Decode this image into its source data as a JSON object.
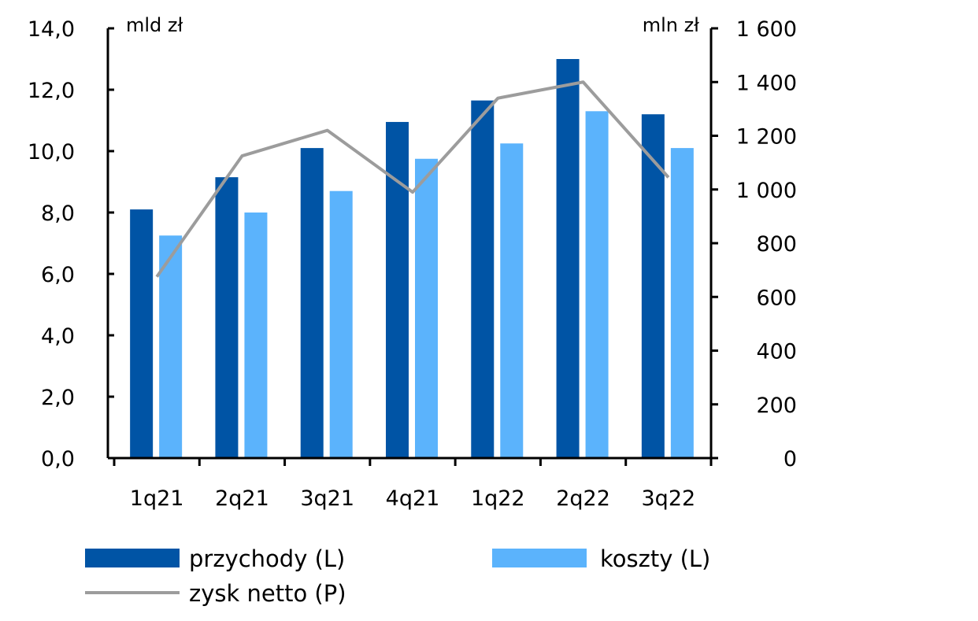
{
  "chart_data": {
    "type": "bar",
    "categories": [
      "1q21",
      "2q21",
      "3q21",
      "4q21",
      "1q22",
      "2q22",
      "3q22"
    ],
    "left_axis": {
      "unit": "mld zł",
      "ylim": [
        0,
        14
      ],
      "ticks": [
        "0,0",
        "2,0",
        "4,0",
        "6,0",
        "8,0",
        "10,0",
        "12,0",
        "14,0"
      ]
    },
    "right_axis": {
      "unit": "mln zł",
      "ylim": [
        0,
        1600
      ],
      "ticks": [
        "0",
        "200",
        "400",
        "600",
        "800",
        "1 000",
        "1 200",
        "1 400",
        "1 600"
      ]
    },
    "series": [
      {
        "name": "przychody (L)",
        "type": "bar",
        "axis": "left",
        "color": "#0054a5",
        "values": [
          8.1,
          9.15,
          10.1,
          10.95,
          11.65,
          13.0,
          11.2
        ]
      },
      {
        "name": "koszty (L)",
        "type": "bar",
        "axis": "left",
        "color": "#5bb3fc",
        "values": [
          7.25,
          8.0,
          8.7,
          9.75,
          10.25,
          11.3,
          10.1
        ]
      },
      {
        "name": "zysk netto (P)",
        "type": "line",
        "axis": "right",
        "color": "#9c9c9c",
        "values": [
          675,
          1125,
          1220,
          990,
          1340,
          1400,
          1045
        ]
      }
    ],
    "grid": false,
    "legend_placement": "bottom"
  }
}
